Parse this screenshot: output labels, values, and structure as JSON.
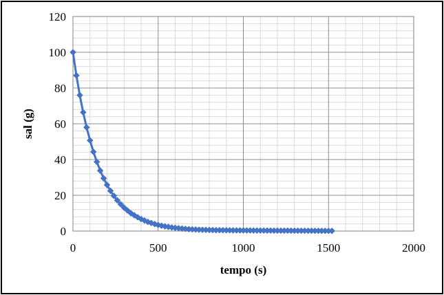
{
  "chart_data": {
    "type": "line",
    "title": "",
    "xlabel": "tempo (s)",
    "ylabel": "sal (g)",
    "xlim": [
      0,
      2000
    ],
    "ylim": [
      0,
      120
    ],
    "x_ticks": [
      "0",
      "500",
      "1000",
      "1500",
      "2000"
    ],
    "y_ticks": [
      "0",
      "20",
      "40",
      "60",
      "80",
      "100",
      "120"
    ],
    "grid": true,
    "legend": "none",
    "series": [
      {
        "color": "#4472C4",
        "marker": "diamond",
        "x": [
          0,
          20,
          40,
          60,
          80,
          100,
          120,
          140,
          160,
          180,
          200,
          220,
          240,
          260,
          280,
          300,
          320,
          340,
          360,
          380,
          400,
          420,
          440,
          460,
          480,
          500,
          520,
          540,
          560,
          580,
          600,
          620,
          640,
          660,
          680,
          700,
          720,
          740,
          760,
          780,
          800,
          820,
          840,
          860,
          880,
          900,
          920,
          940,
          960,
          980,
          1000,
          1020,
          1040,
          1060,
          1080,
          1100,
          1120,
          1140,
          1160,
          1180,
          1200,
          1220,
          1240,
          1260,
          1280,
          1300,
          1320,
          1340,
          1360,
          1380,
          1400,
          1420,
          1440,
          1460,
          1480,
          1500,
          1520
        ],
        "y": [
          100,
          87,
          76,
          66.4,
          58,
          50.7,
          44.3,
          38.7,
          33.8,
          29.5,
          25.8,
          22.5,
          19.7,
          17.2,
          15,
          13.1,
          11.5,
          10,
          8.8,
          7.7,
          6.7,
          5.9,
          5.1,
          4.5,
          3.9,
          3.4,
          3,
          2.6,
          2.3,
          2,
          1.8,
          1.6,
          1.4,
          1.2,
          1.05,
          0.95,
          0.85,
          0.75,
          0.7,
          0.65,
          0.6,
          0.55,
          0.5,
          0.48,
          0.46,
          0.44,
          0.42,
          0.4,
          0.38,
          0.36,
          0.35,
          0.34,
          0.33,
          0.32,
          0.31,
          0.3,
          0.29,
          0.28,
          0.27,
          0.26,
          0.25,
          0.24,
          0.23,
          0.22,
          0.21,
          0.2,
          0.19,
          0.18,
          0.17,
          0.16,
          0.15,
          0.14,
          0.13,
          0.12,
          0.11,
          0.1,
          0.09
        ]
      }
    ]
  }
}
